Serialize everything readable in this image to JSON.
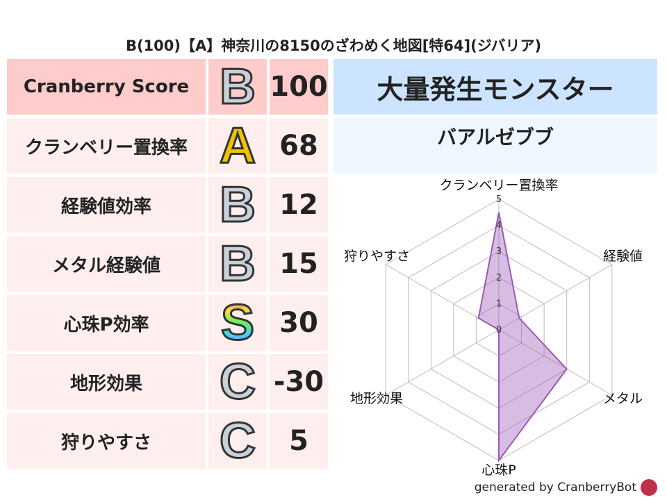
{
  "title": "B(100)【A】神奈川の8150のざわめく地図[特64](ジバリア)",
  "rows": [
    {
      "label": "Cranberry Score",
      "grade": "B",
      "value": "100"
    },
    {
      "label": "クランベリー置換率",
      "grade": "A",
      "value": "68"
    },
    {
      "label": "経験値効率",
      "grade": "B",
      "value": "12"
    },
    {
      "label": "メタル経験値",
      "grade": "B",
      "value": "15"
    },
    {
      "label": "心珠P効率",
      "grade": "S",
      "value": "30"
    },
    {
      "label": "地形効果",
      "grade": "C",
      "value": "-30"
    },
    {
      "label": "狩りやすさ",
      "grade": "C",
      "value": "5"
    }
  ],
  "grade_colors": {
    "A": "#f2c200",
    "B": "#c8d0d8",
    "C": "#c8d0d8",
    "S": "rainbow"
  },
  "monster_header": "大量発生モンスター",
  "monster_name": "バアルゼブブ",
  "footer": "generated by CranberryBot",
  "chart_data": {
    "type": "radar",
    "axes": [
      "クランベリー置換率",
      "経験値",
      "メタル",
      "心珠P",
      "地形効果",
      "狩りやすさ"
    ],
    "values": [
      4.5,
      0.9,
      3,
      5,
      0,
      0.9
    ],
    "range": [
      0,
      5
    ],
    "ticks": [
      "0",
      "1",
      "2",
      "3",
      "4",
      "5"
    ],
    "color": "#9b59b6"
  }
}
